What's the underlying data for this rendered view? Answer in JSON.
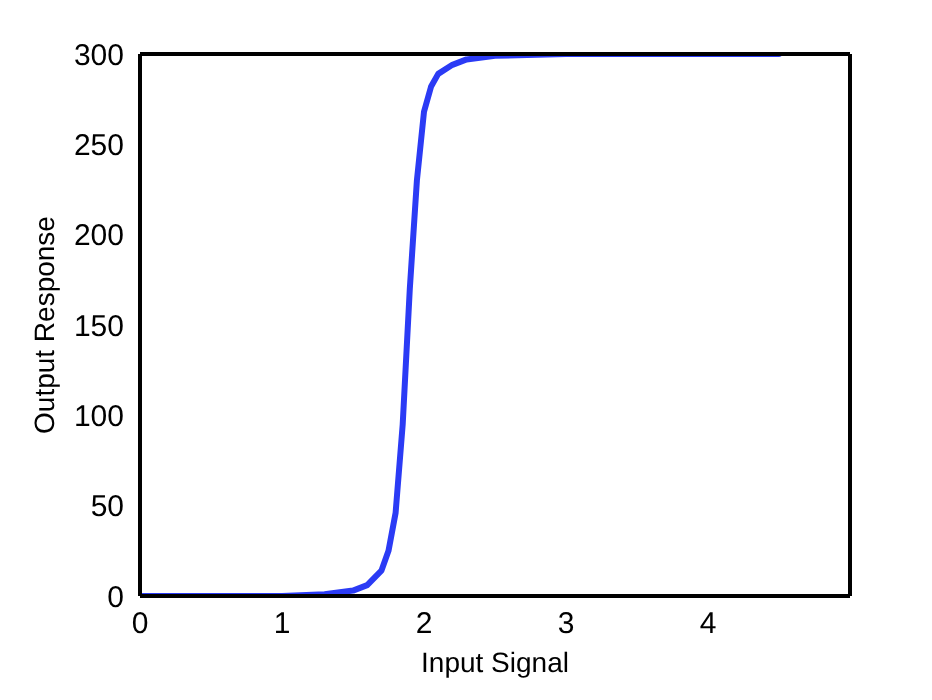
{
  "chart_data": {
    "type": "line",
    "xlabel": "Input Signal",
    "ylabel": "Output Response",
    "xlim": [
      0,
      5
    ],
    "xticks": [
      0,
      1,
      2,
      3,
      4
    ],
    "ylim": [
      0,
      300
    ],
    "yticks": [
      0,
      50,
      100,
      150,
      200,
      250,
      300
    ],
    "grid": false,
    "legend": false,
    "marker": "none",
    "line_style": "solid",
    "series": [
      {
        "color": "#2b3bf5",
        "x": [
          0,
          0.5,
          1,
          1.3,
          1.5,
          1.6,
          1.7,
          1.75,
          1.8,
          1.85,
          1.9,
          1.95,
          2,
          2.05,
          2.1,
          2.2,
          2.3,
          2.5,
          3,
          4.5
        ],
        "values": [
          0,
          0,
          0,
          1,
          3,
          6,
          14,
          25,
          46,
          95,
          170,
          230,
          268,
          282,
          289,
          294,
          297,
          299,
          300,
          300
        ]
      }
    ]
  }
}
